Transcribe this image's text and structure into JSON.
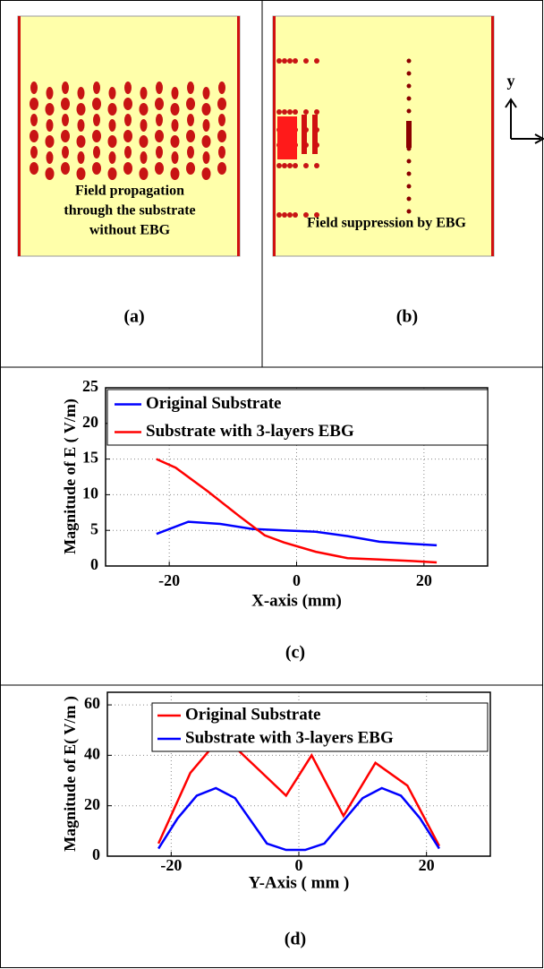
{
  "panels": [
    {
      "label": "(a)",
      "caption": [
        "Field propagation",
        "through the substrate",
        "without EBG"
      ]
    },
    {
      "label": "(b)",
      "caption": [
        "Field suppression by EBG"
      ],
      "axis_label": "y"
    }
  ],
  "chart_data": [
    {
      "type": "line",
      "label": "(c)",
      "x_label": "X-axis (mm)",
      "y_label": "Magnitude of E ( V/m)",
      "xlim": [
        -30,
        30
      ],
      "xticks": [
        -20,
        0,
        20
      ],
      "ylim": [
        0,
        25
      ],
      "yticks": [
        0,
        5,
        10,
        15,
        20,
        25
      ],
      "grid": true,
      "legend": "top-left",
      "series": [
        {
          "name": "Original Substrate",
          "color": "#0000ff",
          "x": [
            -22,
            -17,
            -12,
            -7,
            -2,
            3,
            8,
            13,
            18,
            22
          ],
          "values": [
            4.5,
            6.2,
            5.9,
            5.2,
            5.0,
            4.8,
            4.2,
            3.4,
            3.1,
            2.9
          ]
        },
        {
          "name": "Substrate with 3-layers EBG",
          "color": "#ff0000",
          "x": [
            -22,
            -19,
            -14,
            -9,
            -5,
            -2,
            3,
            8,
            13,
            18,
            22
          ],
          "values": [
            15,
            13.8,
            10.5,
            7,
            4.3,
            3.3,
            2.0,
            1.1,
            0.9,
            0.7,
            0.5
          ]
        }
      ]
    },
    {
      "type": "line",
      "label": "(d)",
      "x_label": "Y-Axis ( mm )",
      "y_label": "Magnitude of E( V/m )",
      "xlim": [
        -30,
        30
      ],
      "xticks": [
        -20,
        0,
        20
      ],
      "ylim": [
        0,
        65
      ],
      "yticks": [
        0,
        20,
        40,
        60
      ],
      "grid": true,
      "legend": "top-right",
      "series": [
        {
          "name": "Original Substrate",
          "color": "#ff0000",
          "x": [
            -22,
            -17,
            -12,
            -7,
            -2,
            2,
            7,
            12,
            17,
            22
          ],
          "values": [
            5,
            33,
            48,
            36,
            24,
            40,
            16,
            37,
            28,
            4
          ]
        },
        {
          "name": "Substrate with 3-layers EBG",
          "color": "#0000ff",
          "x": [
            -22,
            -19,
            -16,
            -13,
            -10,
            -5,
            -2,
            1,
            4,
            10,
            13,
            16,
            19,
            22
          ],
          "values": [
            3,
            15,
            24,
            27,
            23,
            5,
            2.5,
            2.5,
            5,
            23,
            27,
            24,
            15,
            3
          ]
        }
      ]
    }
  ]
}
